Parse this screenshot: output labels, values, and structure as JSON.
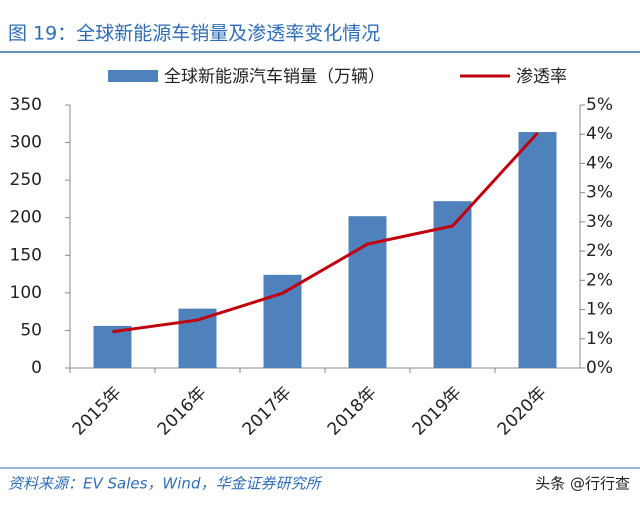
{
  "chart_data": {
    "type": "bar_line",
    "title": "图 19：全球新能源车销量及渗透率变化情况",
    "categories": [
      "2015年",
      "2016年",
      "2017年",
      "2018年",
      "2019年",
      "2020年"
    ],
    "series": [
      {
        "name": "全球新能源汽车销量（万辆）",
        "type": "bar",
        "color": "#4f81bd",
        "values": [
          56,
          79,
          124,
          202,
          222,
          314
        ]
      },
      {
        "name": "渗透率",
        "type": "line",
        "color": "#c0000f",
        "axis": "y2",
        "values": [
          0.62,
          0.82,
          1.28,
          2.12,
          2.43,
          4.02
        ]
      }
    ],
    "ylim": [
      0,
      350
    ],
    "yticks": [
      0,
      50,
      100,
      150,
      200,
      250,
      300,
      350
    ],
    "y2lim": [
      0,
      4.5
    ],
    "y2ticks": [
      {
        "value": 0,
        "label": "0%"
      },
      {
        "value": 0.5,
        "label": "1%"
      },
      {
        "value": 1,
        "label": "1%"
      },
      {
        "value": 1.5,
        "label": "2%"
      },
      {
        "value": 2,
        "label": "2%"
      },
      {
        "value": 2.5,
        "label": "3%"
      },
      {
        "value": 3,
        "label": "3%"
      },
      {
        "value": 3.5,
        "label": "4%"
      },
      {
        "value": 4,
        "label": "4%"
      },
      {
        "value": 4.5,
        "label": "5%"
      }
    ],
    "source": "资料来源：EV Sales，Wind，华金证券研究所",
    "watermark": "头条 @行行查"
  }
}
